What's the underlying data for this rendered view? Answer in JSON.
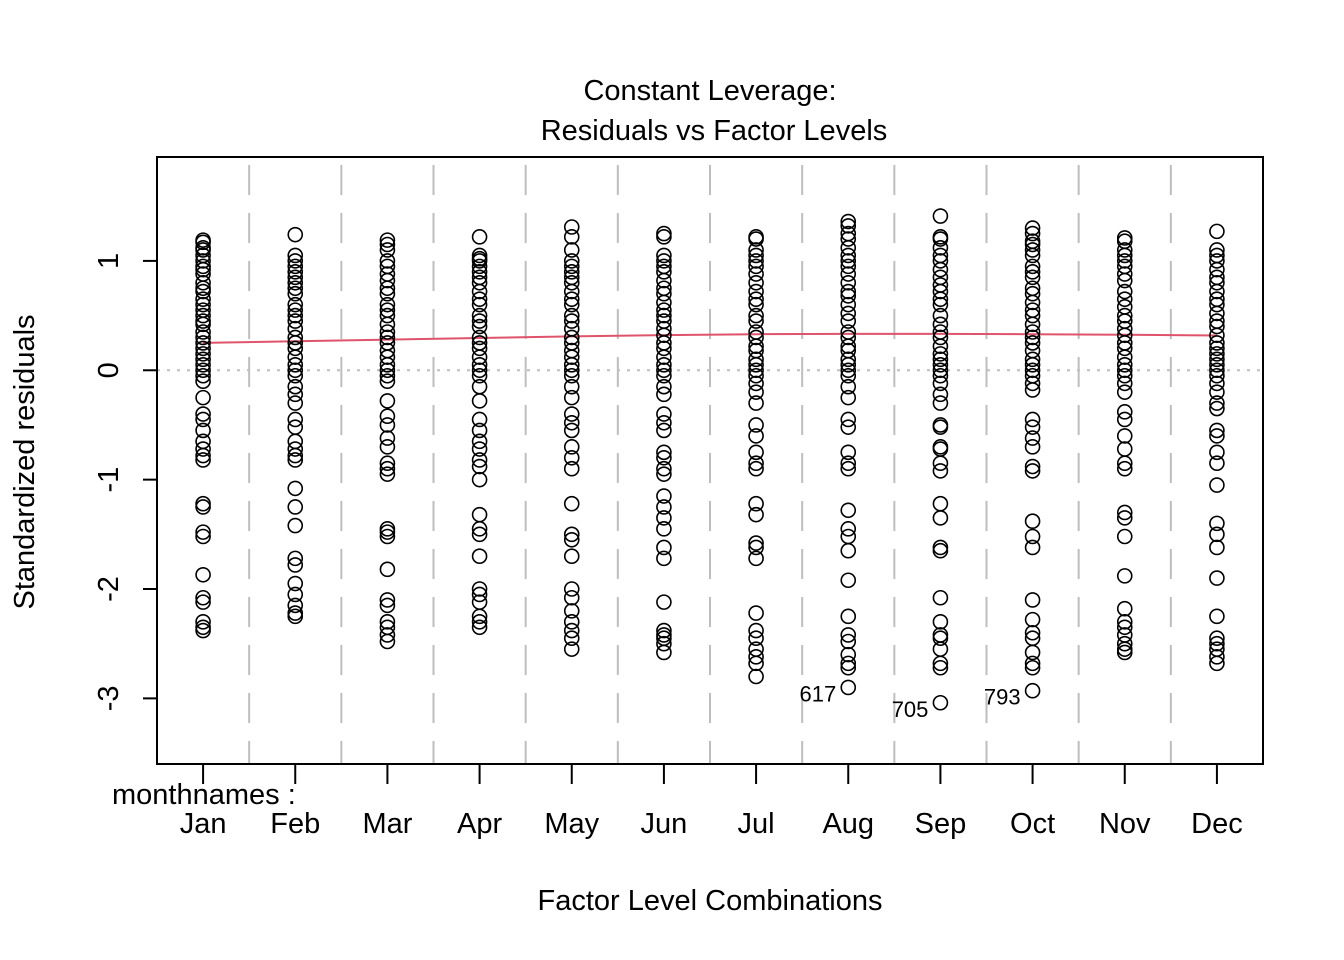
{
  "chart_data": {
    "type": "scatter",
    "title": "Constant Leverage:",
    "subtitle": "Residuals vs Factor Levels",
    "xlabel": "Factor Level Combinations",
    "ylabel": "Standardized residuals",
    "factor_label": "monthnames :",
    "categories": [
      "Jan",
      "Feb",
      "Mar",
      "Apr",
      "May",
      "Jun",
      "Jul",
      "Aug",
      "Sep",
      "Oct",
      "Nov",
      "Dec"
    ],
    "xlim": [
      0.5,
      12.5
    ],
    "ylim": [
      -3.6,
      1.95
    ],
    "yticks": [
      -3,
      -2,
      -1,
      0,
      1
    ],
    "grid": "dashed vertical separators between levels",
    "reference_line": 0,
    "colors": {
      "points": "#000000",
      "smooth": "#DF536B",
      "grid": "#BEBEBE",
      "refline": "#BEBEBE"
    },
    "series": [
      {
        "category": "Jan",
        "values": [
          1.19,
          1.17,
          1.12,
          1.1,
          1.05,
          1.0,
          0.95,
          0.92,
          0.88,
          0.8,
          0.75,
          0.72,
          0.65,
          0.6,
          0.55,
          0.5,
          0.45,
          0.42,
          0.35,
          0.3,
          0.25,
          0.2,
          0.15,
          0.1,
          0.05,
          0.0,
          -0.05,
          -0.1,
          -0.25,
          -0.4,
          -0.45,
          -0.55,
          -0.65,
          -0.72,
          -0.78,
          -0.82,
          -1.22,
          -1.25,
          -1.48,
          -1.52,
          -1.87,
          -2.08,
          -2.12,
          -2.3,
          -2.35,
          -2.38
        ]
      },
      {
        "category": "Feb",
        "values": [
          1.24,
          1.05,
          1.0,
          0.95,
          0.9,
          0.85,
          0.8,
          0.75,
          0.7,
          0.6,
          0.55,
          0.5,
          0.45,
          0.38,
          0.3,
          0.25,
          0.2,
          0.12,
          0.05,
          0.0,
          -0.05,
          -0.15,
          -0.22,
          -0.3,
          -0.45,
          -0.52,
          -0.65,
          -0.72,
          -0.78,
          -0.82,
          -1.08,
          -1.25,
          -1.42,
          -1.72,
          -1.78,
          -1.95,
          -2.05,
          -2.15,
          -2.22,
          -2.25
        ]
      },
      {
        "category": "Mar",
        "values": [
          1.19,
          1.15,
          1.1,
          1.0,
          0.95,
          0.88,
          0.82,
          0.75,
          0.7,
          0.6,
          0.55,
          0.5,
          0.42,
          0.35,
          0.3,
          0.25,
          0.18,
          0.12,
          0.05,
          0.0,
          -0.05,
          -0.1,
          -0.28,
          -0.42,
          -0.5,
          -0.62,
          -0.7,
          -0.85,
          -0.9,
          -0.95,
          -1.45,
          -1.48,
          -1.52,
          -1.82,
          -2.1,
          -2.15,
          -2.3,
          -2.35,
          -2.42,
          -2.48
        ]
      },
      {
        "category": "Apr",
        "values": [
          1.22,
          1.05,
          1.02,
          1.0,
          0.95,
          0.9,
          0.85,
          0.8,
          0.72,
          0.65,
          0.6,
          0.5,
          0.45,
          0.4,
          0.3,
          0.25,
          0.2,
          0.12,
          0.05,
          0.0,
          -0.05,
          -0.15,
          -0.28,
          -0.45,
          -0.55,
          -0.65,
          -0.72,
          -0.82,
          -0.88,
          -1.0,
          -1.32,
          -1.45,
          -1.5,
          -1.7,
          -2.0,
          -2.05,
          -2.12,
          -2.25,
          -2.3,
          -2.35
        ]
      },
      {
        "category": "May",
        "values": [
          1.31,
          1.22,
          1.1,
          1.0,
          0.95,
          0.9,
          0.85,
          0.8,
          0.72,
          0.65,
          0.6,
          0.5,
          0.45,
          0.38,
          0.3,
          0.25,
          0.18,
          0.12,
          0.05,
          0.0,
          -0.05,
          -0.15,
          -0.25,
          -0.4,
          -0.48,
          -0.55,
          -0.7,
          -0.8,
          -0.9,
          -1.22,
          -1.5,
          -1.55,
          -1.7,
          -2.0,
          -2.08,
          -2.2,
          -2.3,
          -2.38,
          -2.45,
          -2.55
        ]
      },
      {
        "category": "Jun",
        "values": [
          1.25,
          1.22,
          1.05,
          1.0,
          0.95,
          0.9,
          0.82,
          0.75,
          0.7,
          0.62,
          0.55,
          0.5,
          0.45,
          0.38,
          0.32,
          0.25,
          0.2,
          0.12,
          0.05,
          0.0,
          -0.05,
          -0.15,
          -0.22,
          -0.4,
          -0.48,
          -0.55,
          -0.75,
          -0.8,
          -0.9,
          -0.95,
          -1.15,
          -1.25,
          -1.35,
          -1.45,
          -1.62,
          -1.72,
          -2.12,
          -2.38,
          -2.42,
          -2.45,
          -2.5,
          -2.58
        ]
      },
      {
        "category": "Jul",
        "values": [
          1.22,
          1.2,
          1.1,
          1.05,
          1.0,
          0.95,
          0.88,
          0.8,
          0.72,
          0.65,
          0.6,
          0.5,
          0.45,
          0.35,
          0.3,
          0.22,
          0.18,
          0.1,
          0.05,
          0.0,
          -0.05,
          -0.12,
          -0.2,
          -0.3,
          -0.5,
          -0.6,
          -0.75,
          -0.85,
          -0.9,
          -1.22,
          -1.32,
          -1.58,
          -1.62,
          -1.72,
          -2.22,
          -2.38,
          -2.45,
          -2.55,
          -2.62,
          -2.68,
          -2.8
        ]
      },
      {
        "category": "Aug",
        "values": [
          1.36,
          1.32,
          1.25,
          1.2,
          1.12,
          1.05,
          1.0,
          0.95,
          0.88,
          0.8,
          0.72,
          0.68,
          0.6,
          0.52,
          0.45,
          0.35,
          0.3,
          0.22,
          0.18,
          0.1,
          0.05,
          0.0,
          -0.05,
          -0.15,
          -0.25,
          -0.45,
          -0.52,
          -0.75,
          -0.85,
          -0.9,
          -1.28,
          -1.45,
          -1.52,
          -1.65,
          -1.92,
          -2.25,
          -2.42,
          -2.48,
          -2.6,
          -2.68,
          -2.72,
          -2.9
        ]
      },
      {
        "category": "Sep",
        "values": [
          1.41,
          1.22,
          1.2,
          1.12,
          1.05,
          1.0,
          0.92,
          0.85,
          0.78,
          0.72,
          0.65,
          0.6,
          0.5,
          0.42,
          0.35,
          0.3,
          0.22,
          0.15,
          0.1,
          0.05,
          0.0,
          -0.05,
          -0.12,
          -0.22,
          -0.3,
          -0.5,
          -0.52,
          -0.7,
          -0.72,
          -0.85,
          -0.92,
          -1.22,
          -1.35,
          -1.62,
          -1.65,
          -2.08,
          -2.3,
          -2.42,
          -2.45,
          -2.55,
          -2.68,
          -2.72,
          -3.04
        ]
      },
      {
        "category": "Oct",
        "values": [
          1.3,
          1.25,
          1.18,
          1.15,
          1.1,
          1.05,
          0.95,
          0.9,
          0.85,
          0.75,
          0.7,
          0.62,
          0.55,
          0.5,
          0.42,
          0.35,
          0.3,
          0.25,
          0.18,
          0.1,
          0.05,
          0.0,
          -0.05,
          -0.12,
          -0.18,
          -0.45,
          -0.52,
          -0.62,
          -0.7,
          -0.88,
          -0.92,
          -1.38,
          -1.52,
          -1.62,
          -2.1,
          -2.28,
          -2.4,
          -2.45,
          -2.58,
          -2.68,
          -2.72,
          -2.93
        ]
      },
      {
        "category": "Nov",
        "values": [
          1.21,
          1.18,
          1.1,
          1.05,
          1.0,
          0.95,
          0.88,
          0.82,
          0.72,
          0.65,
          0.58,
          0.5,
          0.45,
          0.38,
          0.32,
          0.25,
          0.2,
          0.12,
          0.05,
          0.0,
          -0.05,
          -0.12,
          -0.2,
          -0.38,
          -0.45,
          -0.6,
          -0.72,
          -0.85,
          -0.9,
          -1.3,
          -1.35,
          -1.52,
          -1.88,
          -2.18,
          -2.3,
          -2.35,
          -2.42,
          -2.5,
          -2.55,
          -2.58
        ]
      },
      {
        "category": "Dec",
        "values": [
          1.27,
          1.1,
          1.05,
          1.0,
          0.92,
          0.85,
          0.8,
          0.72,
          0.65,
          0.6,
          0.52,
          0.45,
          0.4,
          0.32,
          0.25,
          0.2,
          0.15,
          0.1,
          0.05,
          0.0,
          -0.05,
          -0.12,
          -0.2,
          -0.3,
          -0.35,
          -0.55,
          -0.6,
          -0.75,
          -0.85,
          -1.05,
          -1.4,
          -1.5,
          -1.62,
          -1.9,
          -2.25,
          -2.45,
          -2.5,
          -2.55,
          -2.62,
          -2.68
        ]
      }
    ],
    "smooth_line": {
      "x": [
        1,
        2,
        3,
        4,
        5,
        6,
        7,
        8,
        9,
        10,
        11,
        12
      ],
      "y": [
        0.25,
        0.265,
        0.28,
        0.295,
        0.31,
        0.322,
        0.33,
        0.333,
        0.333,
        0.33,
        0.325,
        0.318
      ]
    },
    "annotations": [
      {
        "label": "617",
        "category": "Aug",
        "y": -2.9
      },
      {
        "label": "705",
        "category": "Sep",
        "y": -3.04
      },
      {
        "label": "793",
        "category": "Oct",
        "y": -2.93
      }
    ]
  }
}
